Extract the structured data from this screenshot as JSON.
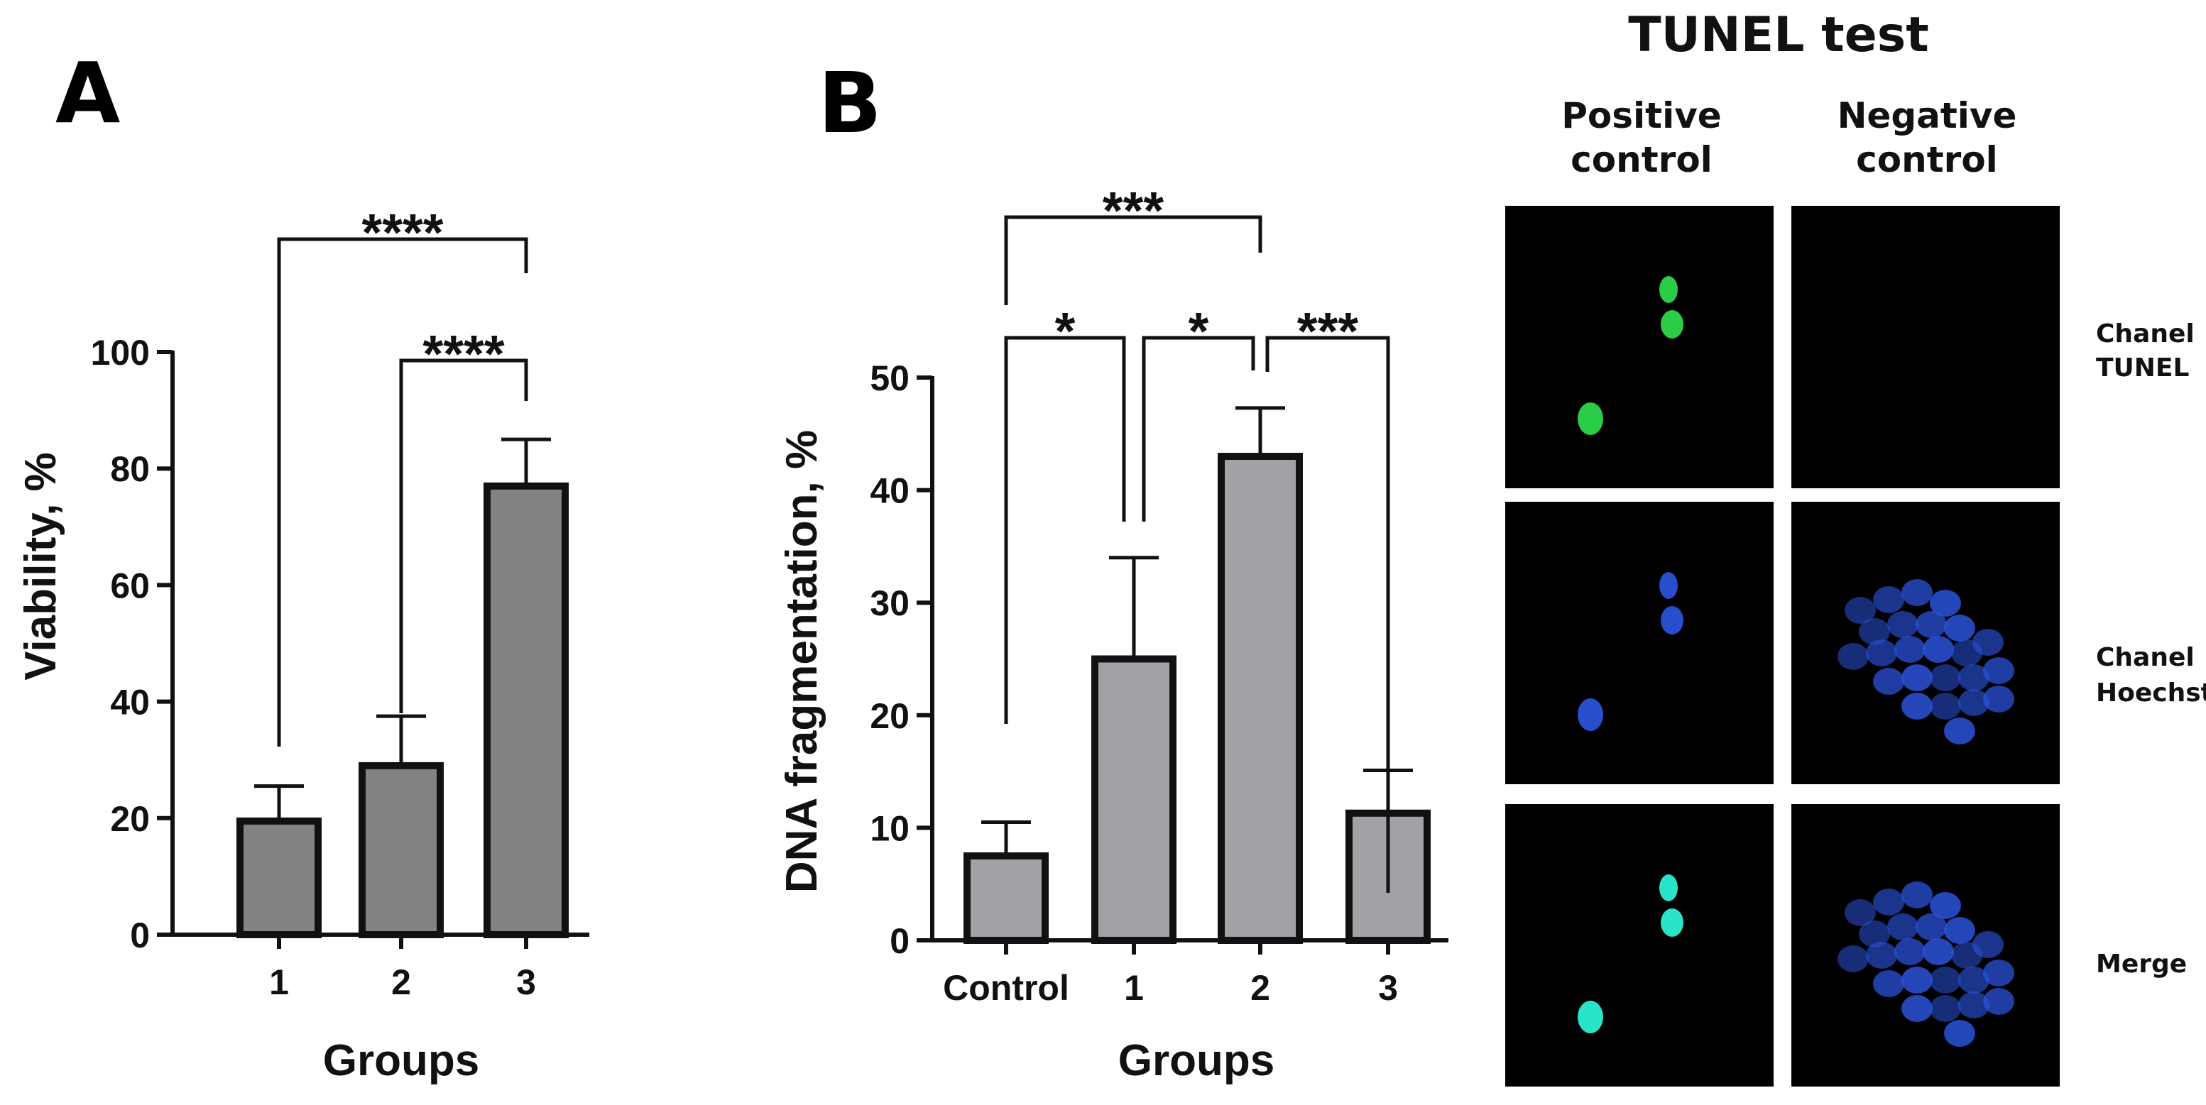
{
  "chart_data": [
    {
      "id": "A",
      "type": "bar",
      "panel_label": "A",
      "title": "",
      "xlabel": "Groups",
      "ylabel": "Viability, %",
      "categories": [
        "1",
        "2",
        "3"
      ],
      "values": [
        19.5,
        29,
        77
      ],
      "errors": [
        6,
        8.5,
        8
      ],
      "ylim": [
        0,
        100
      ],
      "yticks": [
        0,
        20,
        40,
        60,
        80,
        100
      ],
      "bar_color": "#838383",
      "significance": [
        {
          "from": 0,
          "to": 2,
          "label": "****"
        },
        {
          "from": 1,
          "to": 2,
          "label": "****"
        }
      ]
    },
    {
      "id": "B",
      "type": "bar",
      "panel_label": "B",
      "title": "",
      "xlabel": "Groups",
      "ylabel": "DNA fragmentation, %",
      "categories": [
        "Control",
        "1",
        "2",
        "3"
      ],
      "values": [
        7.5,
        25,
        43,
        11.3
      ],
      "errors": [
        3,
        9,
        4.3,
        3.8
      ],
      "ylim": [
        0,
        50
      ],
      "yticks": [
        0,
        10,
        20,
        30,
        40,
        50
      ],
      "bar_color": "#a2a2a6",
      "significance": [
        {
          "from": 0,
          "to": 2,
          "label": "***"
        },
        {
          "from": 0,
          "to": 1,
          "label": "*"
        },
        {
          "from": 1,
          "to": 2,
          "label": "*"
        },
        {
          "from": 2,
          "to": 3,
          "label": "***"
        }
      ]
    }
  ],
  "tunel_panel": {
    "title": "TUNEL test",
    "columns": [
      {
        "line1": "Positive",
        "line2": "control"
      },
      {
        "line1": "Negative",
        "line2": "control"
      }
    ],
    "rows": [
      {
        "line1": "Chanel",
        "line2": "TUNEL"
      },
      {
        "line1": "Chanel",
        "line2": "Hoechst"
      },
      {
        "line1": "Merge",
        "line2": ""
      }
    ],
    "colors": {
      "tunel_green": "#2bd84a",
      "hoechst_blue": "#2a52d8",
      "merge_cyan": "#2cf0d4",
      "background": "#000000"
    }
  }
}
